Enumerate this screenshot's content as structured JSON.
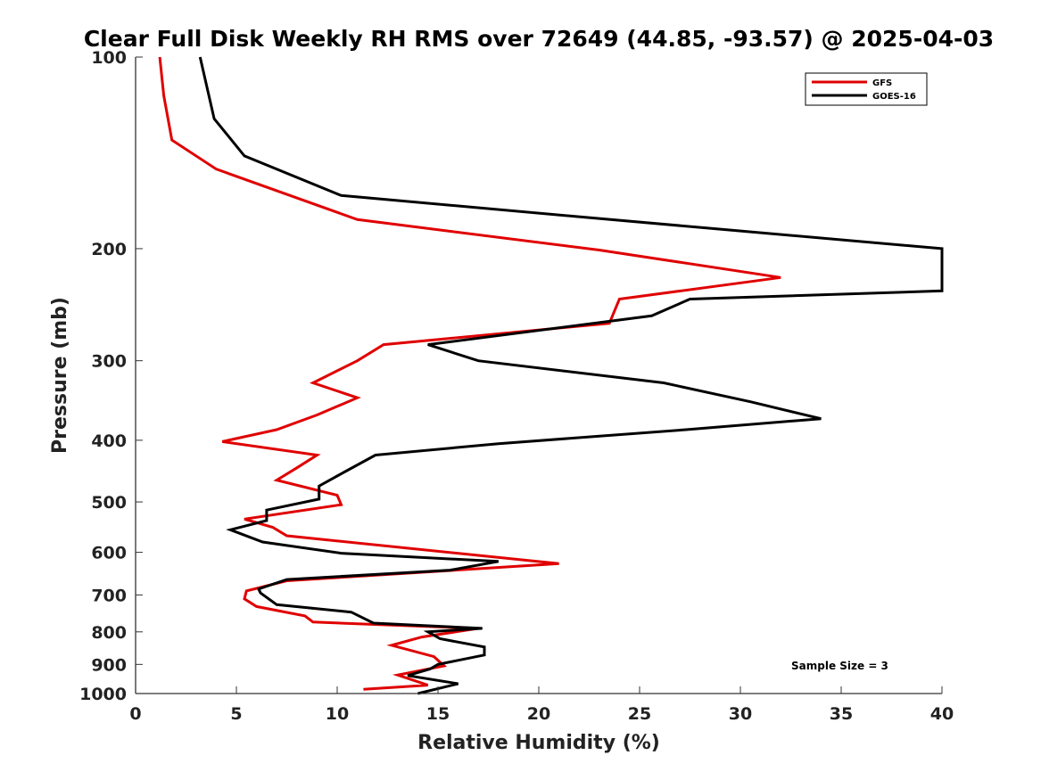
{
  "chart_data": {
    "type": "line",
    "title": "Clear Full Disk Weekly RH RMS over 72649 (44.85, -93.57) @ 2025-04-03",
    "xlabel": "Relative Humidity (%)",
    "ylabel": "Pressure (mb)",
    "xlim": [
      0,
      40
    ],
    "ylim": [
      100,
      1000
    ],
    "y_scale": "log",
    "y_reversed": true,
    "grid": false,
    "x_ticks": [
      "0",
      "5",
      "10",
      "15",
      "20",
      "25",
      "30",
      "35",
      "40"
    ],
    "y_ticks": [
      "100",
      "200",
      "300",
      "400",
      "500",
      "600",
      "700",
      "800",
      "900",
      "1000"
    ],
    "legend": {
      "position": "top-right"
    },
    "annotation": "Sample Size = 3",
    "series": [
      {
        "name": "GFS",
        "color": "#e00000",
        "points": [
          [
            1.2,
            100
          ],
          [
            1.4,
            115
          ],
          [
            1.8,
            135
          ],
          [
            4.0,
            150
          ],
          [
            11.0,
            180
          ],
          [
            23.0,
            201
          ],
          [
            32.0,
            222
          ],
          [
            24.0,
            240
          ],
          [
            23.5,
            262
          ],
          [
            12.3,
            283
          ],
          [
            11.0,
            300
          ],
          [
            8.8,
            325
          ],
          [
            11.0,
            343
          ],
          [
            9.0,
            365
          ],
          [
            7.0,
            385
          ],
          [
            4.3,
            402
          ],
          [
            9.0,
            422
          ],
          [
            8.0,
            442
          ],
          [
            7.0,
            462
          ],
          [
            10.0,
            488
          ],
          [
            10.2,
            505
          ],
          [
            5.4,
            532
          ],
          [
            6.8,
            548
          ],
          [
            7.5,
            565
          ],
          [
            21.0,
            625
          ],
          [
            7.5,
            665
          ],
          [
            5.5,
            690
          ],
          [
            5.4,
            710
          ],
          [
            6.0,
            730
          ],
          [
            8.4,
            755
          ],
          [
            8.8,
            772
          ],
          [
            17.0,
            790
          ],
          [
            14.2,
            815
          ],
          [
            12.7,
            840
          ],
          [
            14.8,
            875
          ],
          [
            15.3,
            905
          ],
          [
            13.0,
            935
          ],
          [
            14.5,
            970
          ],
          [
            11.3,
            985
          ]
        ]
      },
      {
        "name": "GOES-16",
        "color": "#000000",
        "points": [
          [
            3.2,
            100
          ],
          [
            3.9,
            125
          ],
          [
            5.4,
            143
          ],
          [
            10.2,
            165
          ],
          [
            21.8,
            178
          ],
          [
            40.0,
            200
          ],
          [
            40.0,
            233
          ],
          [
            27.5,
            240
          ],
          [
            25.6,
            255
          ],
          [
            14.5,
            283
          ],
          [
            17.0,
            300
          ],
          [
            26.2,
            325
          ],
          [
            30.5,
            348
          ],
          [
            34.0,
            370
          ],
          [
            27.3,
            385
          ],
          [
            18.0,
            405
          ],
          [
            11.9,
            422
          ],
          [
            10.4,
            448
          ],
          [
            9.1,
            472
          ],
          [
            9.1,
            495
          ],
          [
            6.5,
            515
          ],
          [
            6.5,
            535
          ],
          [
            4.7,
            553
          ],
          [
            6.3,
            578
          ],
          [
            10.2,
            602
          ],
          [
            18.0,
            620
          ],
          [
            15.6,
            640
          ],
          [
            7.5,
            662
          ],
          [
            6.1,
            685
          ],
          [
            6.2,
            695
          ],
          [
            7.0,
            725
          ],
          [
            10.7,
            745
          ],
          [
            11.8,
            775
          ],
          [
            17.2,
            790
          ],
          [
            14.5,
            800
          ],
          [
            15.1,
            820
          ],
          [
            17.3,
            845
          ],
          [
            17.3,
            870
          ],
          [
            15.0,
            900
          ],
          [
            14.6,
            915
          ],
          [
            13.5,
            937
          ],
          [
            16.0,
            965
          ],
          [
            14.0,
            1000
          ]
        ]
      }
    ]
  }
}
